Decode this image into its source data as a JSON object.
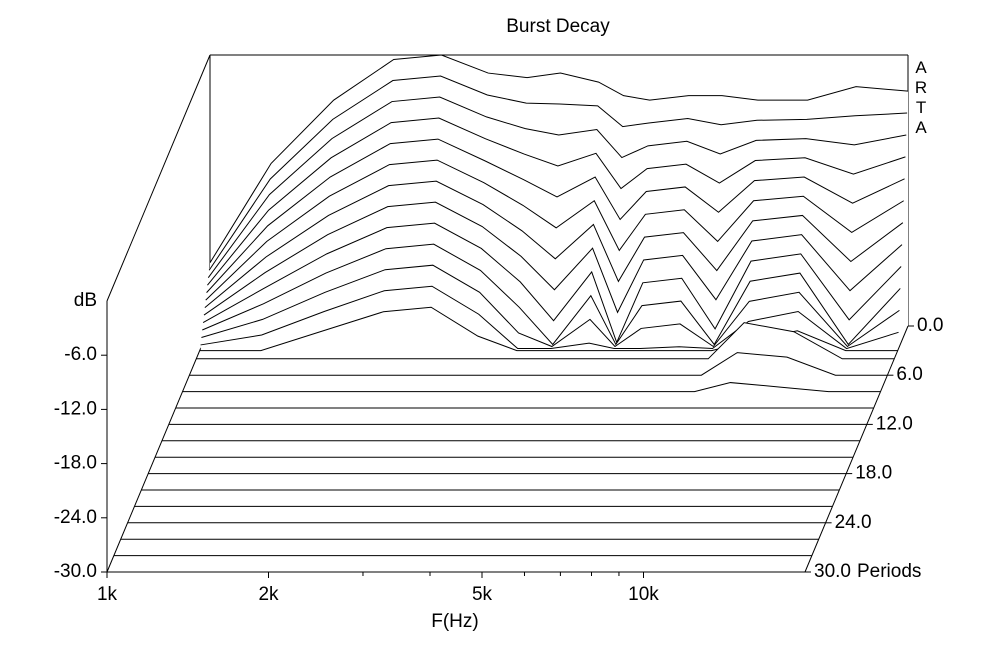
{
  "chart_data": {
    "type": "waterfall",
    "title": "Burst Decay",
    "x_label": "F(Hz)",
    "y_label": "dB",
    "z_label": "Periods",
    "watermark": "ARTA",
    "color": "#000000",
    "xlim": [
      1000,
      20000
    ],
    "log_x": true,
    "xticks": [
      {
        "value": 1000,
        "label": "1k"
      },
      {
        "value": 2000,
        "label": "2k"
      },
      {
        "value": 5000,
        "label": "5k"
      },
      {
        "value": 10000,
        "label": "10k"
      }
    ],
    "xminor": [
      3000,
      4000,
      6000,
      7000,
      8000,
      9000
    ],
    "ylim": [
      -30,
      0
    ],
    "yticks": [
      {
        "value": -30,
        "label": "-30.0"
      },
      {
        "value": -24,
        "label": "-24.0"
      },
      {
        "value": -18,
        "label": "-18.0"
      },
      {
        "value": -12,
        "label": "-12.0"
      },
      {
        "value": -6,
        "label": "-6.0"
      }
    ],
    "zlim": [
      0,
      30
    ],
    "zticks": [
      {
        "value": 0,
        "label": "0.0"
      },
      {
        "value": 6,
        "label": "6.0"
      },
      {
        "value": 12,
        "label": "12.0"
      },
      {
        "value": 18,
        "label": "18.0"
      },
      {
        "value": 24,
        "label": "24.0"
      },
      {
        "value": 30,
        "label": "30.0"
      }
    ],
    "x": [
      1000,
      1300,
      1700,
      2200,
      2700,
      3300,
      3900,
      4500,
      5300,
      5900,
      6600,
      7800,
      9000,
      10500,
      13000,
      16000,
      20000
    ],
    "slices": [
      {
        "period": 0,
        "values": [
          -23,
          -12,
          -5,
          -0.5,
          0,
          -2,
          -2.5,
          -2,
          -3,
          -4.5,
          -5,
          -4.5,
          -4.5,
          -5,
          -5,
          -3.5,
          -4
        ]
      },
      {
        "period": 0.25,
        "values": [
          -23.6,
          -13.5,
          -6.9,
          -2.6,
          -2.1,
          -4.2,
          -5.1,
          -5.2,
          -5.4,
          -7.7,
          -7.3,
          -6.8,
          -7.5,
          -7,
          -6.9,
          -6.5,
          -6.2
        ]
      },
      {
        "period": 0.5,
        "values": [
          -24.2,
          -15,
          -8.8,
          -4.7,
          -4.2,
          -6.4,
          -7.7,
          -8.4,
          -7.8,
          -10.9,
          -9.6,
          -9.1,
          -10.5,
          -9,
          -8.8,
          -9.5,
          -8.4
        ]
      },
      {
        "period": 0.75,
        "values": [
          -24.8,
          -16.5,
          -10.7,
          -6.8,
          -6.3,
          -8.6,
          -10.3,
          -11.6,
          -10.2,
          -14.1,
          -11.9,
          -11.4,
          -13.5,
          -11,
          -10.7,
          -12.5,
          -10.6
        ]
      },
      {
        "period": 1,
        "values": [
          -25.4,
          -18,
          -12.6,
          -8.9,
          -8.4,
          -10.8,
          -12.9,
          -14.8,
          -12.6,
          -17.3,
          -14.2,
          -13.7,
          -16.5,
          -13,
          -12.6,
          -15.5,
          -12.8
        ]
      },
      {
        "period": 1.25,
        "values": [
          -26,
          -19.5,
          -14.5,
          -11,
          -10.5,
          -13,
          -15.5,
          -18,
          -15,
          -20.5,
          -16.5,
          -16,
          -19.5,
          -15,
          -14.5,
          -18.5,
          -15
        ]
      },
      {
        "period": 1.5,
        "values": [
          -26.6,
          -21,
          -16.4,
          -13.1,
          -12.6,
          -15.2,
          -18.1,
          -21.2,
          -17.4,
          -23.7,
          -18.8,
          -18.3,
          -22.5,
          -17,
          -16.4,
          -21.5,
          -17.2
        ]
      },
      {
        "period": 1.75,
        "values": [
          -27.2,
          -22.5,
          -18.3,
          -15.2,
          -14.7,
          -17.4,
          -20.7,
          -24.4,
          -19.8,
          -26.9,
          -21.1,
          -20.6,
          -25.5,
          -19,
          -18.3,
          -24.5,
          -19.4
        ]
      },
      {
        "period": 2,
        "values": [
          -27.8,
          -24,
          -20.2,
          -17.3,
          -16.8,
          -19.6,
          -23.3,
          -27.6,
          -22.2,
          -30,
          -23.4,
          -22.9,
          -28.5,
          -21,
          -20.2,
          -27.5,
          -21.6
        ]
      },
      {
        "period": 2.25,
        "values": [
          -28.4,
          -25.5,
          -22.1,
          -19.4,
          -18.9,
          -21.8,
          -25.9,
          -30,
          -24.6,
          -30,
          -25.7,
          -25.2,
          -30,
          -23,
          -22.1,
          -30,
          -23.8
        ]
      },
      {
        "period": 2.5,
        "values": [
          -29,
          -27,
          -24,
          -21.5,
          -21,
          -24,
          -28.5,
          -30,
          -27,
          -30,
          -28,
          -27.5,
          -30,
          -25,
          -24,
          -30,
          -26
        ]
      },
      {
        "period": 2.75,
        "values": [
          -29.6,
          -28.5,
          -25.9,
          -23.6,
          -23.1,
          -26.2,
          -30,
          -30,
          -29.4,
          -30,
          -30,
          -29.8,
          -30,
          -27,
          -25.9,
          -30,
          -28.2
        ]
      },
      {
        "period": 3,
        "values": [
          -30,
          -30,
          -27.8,
          -25.7,
          -25.2,
          -28.4,
          -30,
          -30,
          -30,
          -30,
          -30,
          -30,
          -30,
          -29,
          -27.8,
          -30,
          -30
        ]
      },
      {
        "period": 4,
        "values": [
          -30,
          -30,
          -30,
          -30,
          -30,
          -30,
          -30,
          -30,
          -30,
          -30,
          -30,
          -30,
          -30,
          -26,
          -27,
          -30,
          -30
        ]
      },
      {
        "period": 6,
        "values": [
          -30,
          -30,
          -30,
          -30,
          -30,
          -30,
          -30,
          -30,
          -30,
          -30,
          -30,
          -30,
          -30,
          -27.5,
          -28,
          -30,
          -30
        ]
      },
      {
        "period": 8,
        "values": [
          -30,
          -30,
          -30,
          -30,
          -30,
          -30,
          -30,
          -30,
          -30,
          -30,
          -30,
          -30,
          -30,
          -29,
          -29.5,
          -30,
          -30
        ]
      },
      {
        "period": 10,
        "values": [
          -30,
          -30,
          -30,
          -30,
          -30,
          -30,
          -30,
          -30,
          -30,
          -30,
          -30,
          -30,
          -30,
          -30,
          -30,
          -30,
          -30
        ]
      },
      {
        "period": 12,
        "values": [
          -30,
          -30,
          -30,
          -30,
          -30,
          -30,
          -30,
          -30,
          -30,
          -30,
          -30,
          -30,
          -30,
          -30,
          -30,
          -30,
          -30
        ]
      },
      {
        "period": 14,
        "values": [
          -30,
          -30,
          -30,
          -30,
          -30,
          -30,
          -30,
          -30,
          -30,
          -30,
          -30,
          -30,
          -30,
          -30,
          -30,
          -30,
          -30
        ]
      },
      {
        "period": 16,
        "values": [
          -30,
          -30,
          -30,
          -30,
          -30,
          -30,
          -30,
          -30,
          -30,
          -30,
          -30,
          -30,
          -30,
          -30,
          -30,
          -30,
          -30
        ]
      },
      {
        "period": 18,
        "values": [
          -30,
          -30,
          -30,
          -30,
          -30,
          -30,
          -30,
          -30,
          -30,
          -30,
          -30,
          -30,
          -30,
          -30,
          -30,
          -30,
          -30
        ]
      },
      {
        "period": 20,
        "values": [
          -30,
          -30,
          -30,
          -30,
          -30,
          -30,
          -30,
          -30,
          -30,
          -30,
          -30,
          -30,
          -30,
          -30,
          -30,
          -30,
          -30
        ]
      },
      {
        "period": 22,
        "values": [
          -30,
          -30,
          -30,
          -30,
          -30,
          -30,
          -30,
          -30,
          -30,
          -30,
          -30,
          -30,
          -30,
          -30,
          -30,
          -30,
          -30
        ]
      },
      {
        "period": 24,
        "values": [
          -30,
          -30,
          -30,
          -30,
          -30,
          -30,
          -30,
          -30,
          -30,
          -30,
          -30,
          -30,
          -30,
          -30,
          -30,
          -30,
          -30
        ]
      },
      {
        "period": 26,
        "values": [
          -30,
          -30,
          -30,
          -30,
          -30,
          -30,
          -30,
          -30,
          -30,
          -30,
          -30,
          -30,
          -30,
          -30,
          -30,
          -30,
          -30
        ]
      },
      {
        "period": 28,
        "values": [
          -30,
          -30,
          -30,
          -30,
          -30,
          -30,
          -30,
          -30,
          -30,
          -30,
          -30,
          -30,
          -30,
          -30,
          -30,
          -30,
          -30
        ]
      },
      {
        "period": 30,
        "values": [
          -30,
          -30,
          -30,
          -30,
          -30,
          -30,
          -30,
          -30,
          -30,
          -30,
          -30,
          -30,
          -30,
          -30,
          -30,
          -30,
          -30
        ]
      }
    ]
  }
}
